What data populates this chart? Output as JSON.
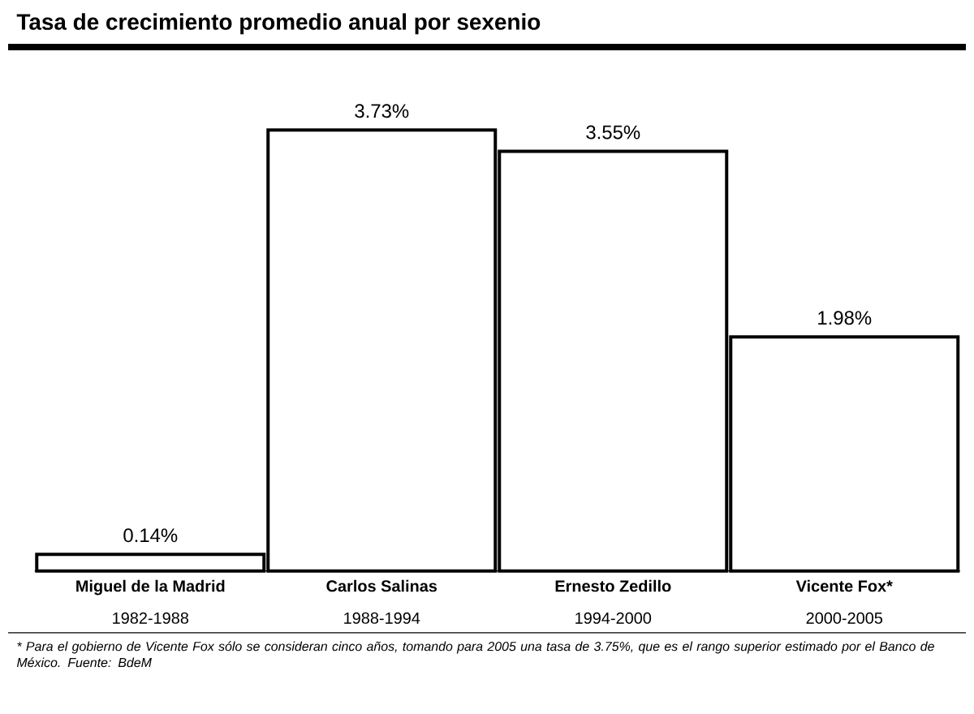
{
  "chart_data": {
    "type": "bar",
    "title": "Tasa de crecimiento promedio anual por sexenio",
    "categories": [
      "Miguel de la Madrid",
      "Carlos Salinas",
      "Ernesto Zedillo",
      "Vicente Fox*"
    ],
    "values": [
      0.14,
      3.73,
      3.55,
      1.98
    ],
    "value_labels": [
      "0.14%",
      "3.73%",
      "3.55%",
      "1.98%"
    ],
    "color": "#ffffff",
    "annotations": [
      "1982-1988",
      "1988-1994",
      "1994-2000",
      "2000-2005",
      "* Para el gobierno de Vicente Fox sólo se consideran cinco años, tomando para 2005 una tasa de 3.75%, que es el rango superior estimado por el Banco de México. Fuente: BdeM"
    ]
  }
}
